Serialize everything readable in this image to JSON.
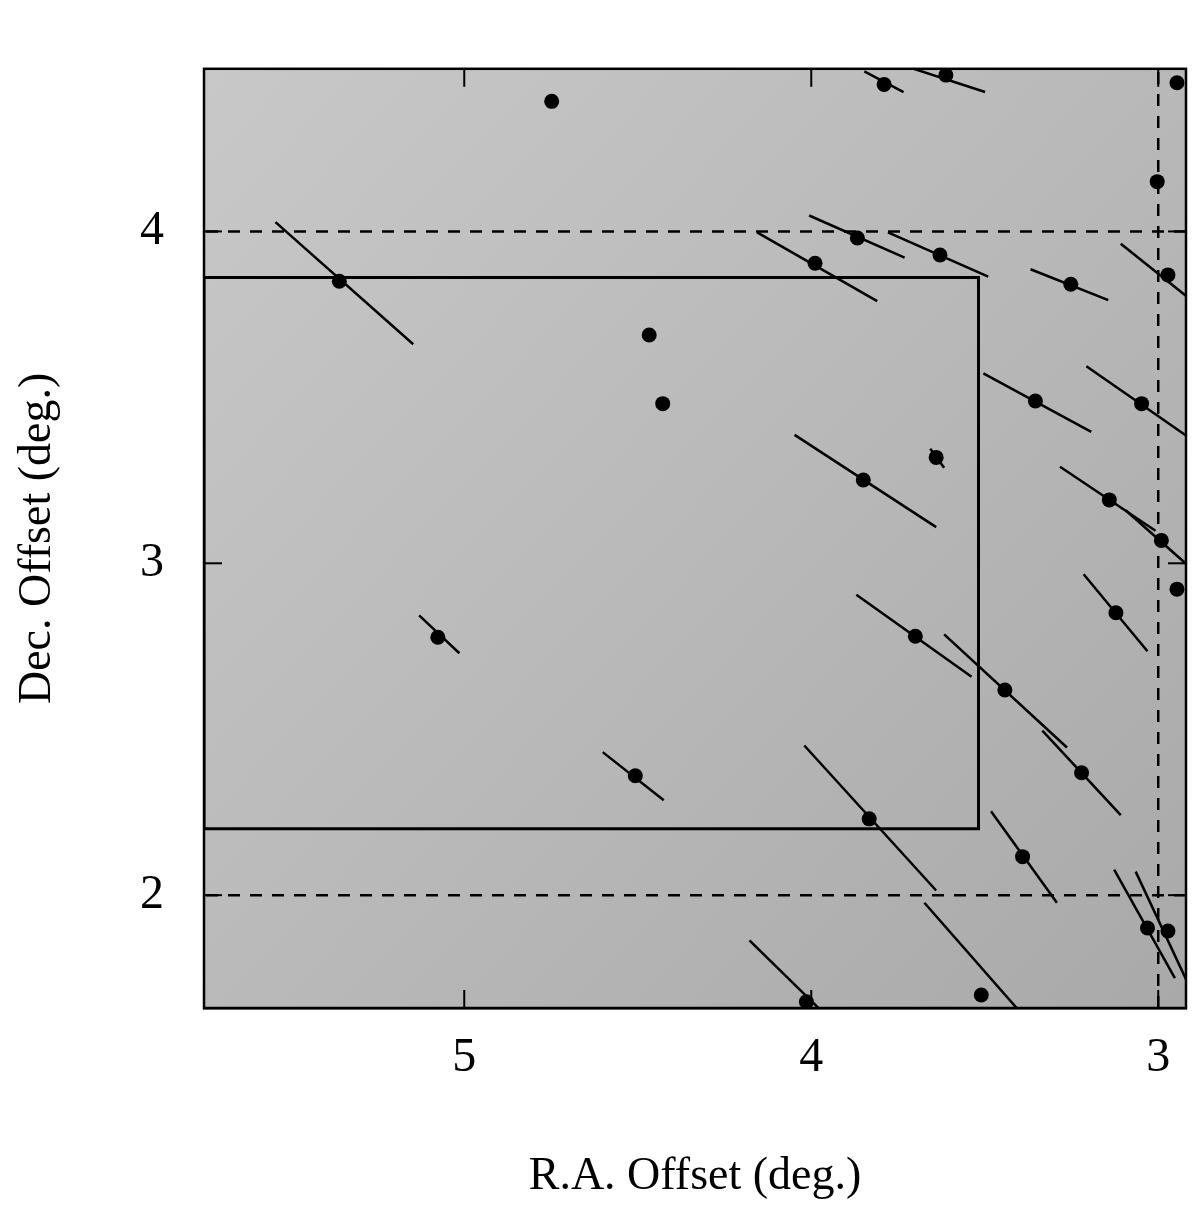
{
  "chart_data": {
    "type": "scatter",
    "x_label": "R.A. Offset (deg.)",
    "y_label": "Dec. Offset (deg.)",
    "xlim": [
      5.75,
      2.92
    ],
    "ylim": [
      1.66,
      4.49
    ],
    "xticks": [
      5,
      4,
      3
    ],
    "yticks": [
      2,
      3,
      4
    ],
    "grid": false,
    "marker": "circle",
    "color": "#000000",
    "points": [
      {
        "x": 4.748,
        "y": 4.392
      },
      {
        "x": 3.79,
        "y": 4.443,
        "vector": [
          3.847,
          4.482,
          3.734,
          4.42
        ]
      },
      {
        "x": 3.612,
        "y": 4.471,
        "vector": [
          3.731,
          4.499,
          3.499,
          4.42
        ]
      },
      {
        "x": 2.946,
        "y": 4.448
      },
      {
        "x": 3.003,
        "y": 4.15
      },
      {
        "x": 2.972,
        "y": 3.869,
        "vector": [
          3.108,
          3.963,
          2.881,
          3.773
        ]
      },
      {
        "x": 3.867,
        "y": 3.98,
        "vector": [
          4.006,
          4.048,
          3.731,
          3.921
        ]
      },
      {
        "x": 3.989,
        "y": 3.904,
        "vector": [
          4.156,
          3.997,
          3.81,
          3.79
        ]
      },
      {
        "x": 3.629,
        "y": 3.929,
        "vector": [
          3.779,
          3.997,
          3.49,
          3.864
        ]
      },
      {
        "x": 3.252,
        "y": 3.841,
        "vector": [
          3.368,
          3.886,
          3.144,
          3.793
        ]
      },
      {
        "x": 3.354,
        "y": 3.489,
        "vector": [
          3.504,
          3.572,
          3.193,
          3.396
        ]
      },
      {
        "x": 3.048,
        "y": 3.481,
        "vector": [
          3.207,
          3.594,
          2.895,
          3.367
        ]
      },
      {
        "x": 3.85,
        "y": 3.251,
        "vector": [
          4.048,
          3.387,
          3.64,
          3.109
        ]
      },
      {
        "x": 3.64,
        "y": 3.319,
        "vector": [
          3.657,
          3.345,
          3.617,
          3.288
        ]
      },
      {
        "x": 3.141,
        "y": 3.191,
        "vector": [
          3.283,
          3.291,
          3.008,
          3.098
        ]
      },
      {
        "x": 2.991,
        "y": 3.069,
        "vector": [
          3.094,
          3.16,
          2.889,
          2.97
        ]
      },
      {
        "x": 2.946,
        "y": 2.922
      },
      {
        "x": 3.122,
        "y": 2.851,
        "vector": [
          3.215,
          2.967,
          3.031,
          2.735
        ]
      },
      {
        "x": 3.7,
        "y": 2.78,
        "vector": [
          3.87,
          2.905,
          3.538,
          2.658
        ]
      },
      {
        "x": 3.442,
        "y": 2.618,
        "vector": [
          3.617,
          2.786,
          3.263,
          2.445
        ]
      },
      {
        "x": 3.221,
        "y": 2.369,
        "vector": [
          3.334,
          2.496,
          3.108,
          2.241
        ]
      },
      {
        "x": 3.833,
        "y": 2.23,
        "vector": [
          4.02,
          2.451,
          3.64,
          2.014
        ]
      },
      {
        "x": 3.391,
        "y": 2.116,
        "vector": [
          3.482,
          2.253,
          3.292,
          1.977
        ]
      },
      {
        "x": 3.51,
        "y": 1.699,
        "vector": [
          3.674,
          1.977,
          3.377,
          1.623
        ]
      },
      {
        "x": 3.031,
        "y": 1.901,
        "vector": [
          3.127,
          2.077,
          2.952,
          1.75
        ]
      },
      {
        "x": 2.972,
        "y": 1.892,
        "vector": [
          3.065,
          2.071,
          2.909,
          1.722
        ]
      },
      {
        "x": 4.014,
        "y": 1.679,
        "vector": [
          4.178,
          1.864,
          3.943,
          1.623
        ]
      },
      {
        "x": 5.076,
        "y": 2.777,
        "vector": [
          5.13,
          2.843,
          5.014,
          2.729
        ]
      },
      {
        "x": 4.507,
        "y": 2.36,
        "vector": [
          4.601,
          2.431,
          4.425,
          2.286
        ]
      },
      {
        "x": 4.467,
        "y": 3.688
      },
      {
        "x": 4.428,
        "y": 3.481
      },
      {
        "x": 5.36,
        "y": 3.85,
        "vector": [
          5.544,
          4.028,
          5.147,
          3.66
        ]
      }
    ],
    "box": {
      "x": [
        5.75,
        3.518
      ],
      "y": [
        2.2,
        3.861
      ],
      "line_style": "solid"
    },
    "reference_lines": {
      "x": [
        3
      ],
      "y": [
        2,
        4
      ],
      "line_style": "dashed"
    }
  }
}
